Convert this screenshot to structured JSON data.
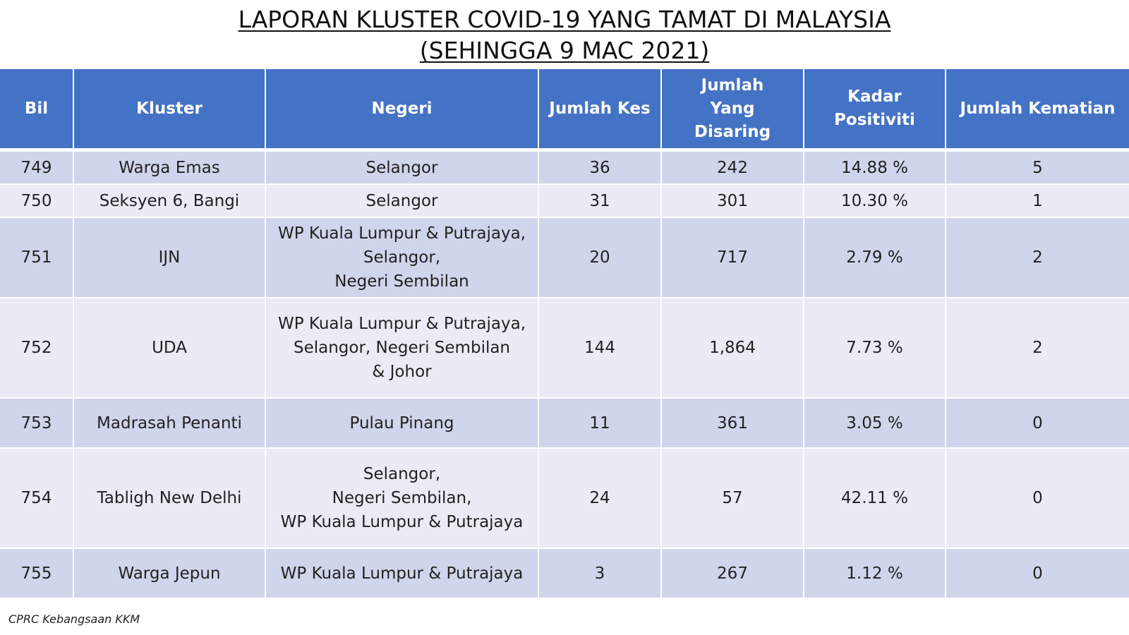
{
  "title": {
    "line1": "LAPORAN KLUSTER COVID-19 YANG TAMAT DI MALAYSIA",
    "line2": "(SEHINGGA 9 MAC 2021)"
  },
  "table": {
    "headers": {
      "bil": "Bil",
      "kluster": "Kluster",
      "negeri": "Negeri",
      "jumlah_kes": "Jumlah Kes",
      "jumlah_disaring": "Jumlah Yang Disaring",
      "kadar_positiviti": "Kadar Positiviti",
      "jumlah_kematian": "Jumlah Kematian"
    },
    "rows": [
      {
        "bil": "749",
        "kluster": "Warga Emas",
        "negeri": "Selangor",
        "jumlah_kes": "36",
        "jumlah_disaring": "242",
        "kadar_positiviti": "14.88 %",
        "jumlah_kematian": "5"
      },
      {
        "bil": "750",
        "kluster": "Seksyen 6, Bangi",
        "negeri": "Selangor",
        "jumlah_kes": "31",
        "jumlah_disaring": "301",
        "kadar_positiviti": "10.30 %",
        "jumlah_kematian": "1"
      },
      {
        "bil": "751",
        "kluster": "IJN",
        "negeri": "WP Kuala Lumpur & Putrajaya,\nSelangor,\nNegeri Sembilan",
        "jumlah_kes": "20",
        "jumlah_disaring": "717",
        "kadar_positiviti": "2.79 %",
        "jumlah_kematian": "2"
      },
      {
        "bil": "752",
        "kluster": "UDA",
        "negeri": "WP Kuala Lumpur & Putrajaya,\nSelangor, Negeri Sembilan\n& Johor",
        "jumlah_kes": "144",
        "jumlah_disaring": "1,864",
        "kadar_positiviti": "7.73 %",
        "jumlah_kematian": "2"
      },
      {
        "bil": "753",
        "kluster": "Madrasah Penanti",
        "negeri": "Pulau Pinang",
        "jumlah_kes": "11",
        "jumlah_disaring": "361",
        "kadar_positiviti": "3.05 %",
        "jumlah_kematian": "0"
      },
      {
        "bil": "754",
        "kluster": "Tabligh New Delhi",
        "negeri": "Selangor,\nNegeri Sembilan,\nWP Kuala Lumpur & Putrajaya",
        "jumlah_kes": "24",
        "jumlah_disaring": "57",
        "kadar_positiviti": "42.11 %",
        "jumlah_kematian": "0"
      },
      {
        "bil": "755",
        "kluster": "Warga Jepun",
        "negeri": "WP Kuala Lumpur & Putrajaya",
        "jumlah_kes": "3",
        "jumlah_disaring": "267",
        "kadar_positiviti": "1.12 %",
        "jumlah_kematian": "0"
      }
    ]
  },
  "footer": "CPRC Kebangsaan KKM",
  "colors": {
    "header_bg": "#4472c4",
    "row_odd_bg": "#cfd5ea",
    "row_even_bg": "#e9ebf5"
  }
}
